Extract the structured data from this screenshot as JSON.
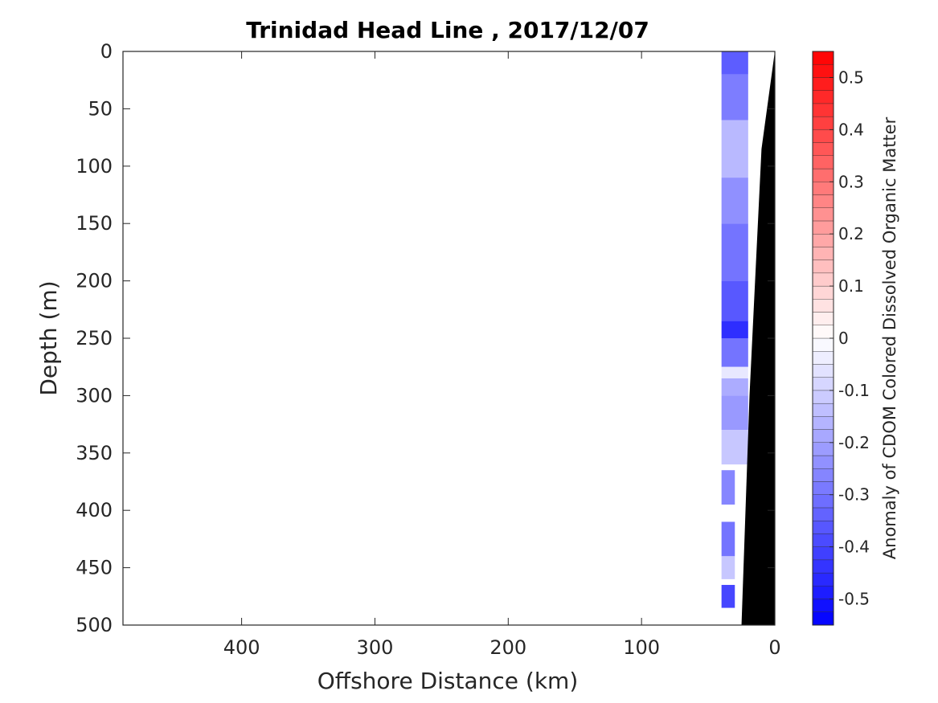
{
  "chart_data": {
    "type": "heatmap",
    "title": "Trinidad Head Line , 2017/12/07",
    "xlabel": "Offshore Distance (km)",
    "ylabel": "Depth (m)",
    "colorbar_label": "Anomaly of CDOM Colored Dissolved Organic Matter",
    "xlim": [
      489,
      0
    ],
    "x_reversed": true,
    "ylim": [
      0,
      500
    ],
    "y_reversed": true,
    "xticks": [
      400,
      300,
      200,
      100,
      0
    ],
    "yticks": [
      0,
      50,
      100,
      150,
      200,
      250,
      300,
      350,
      400,
      450,
      500
    ],
    "colorbar": {
      "range": [
        -0.55,
        0.55
      ],
      "ticks": [
        -0.5,
        -0.4,
        -0.3,
        -0.2,
        -0.1,
        0,
        0.1,
        0.2,
        0.3,
        0.4,
        0.5
      ],
      "levels": 44,
      "colormap": "blue-white-red"
    },
    "colors": {
      "negative": "#0000ff",
      "zero": "#ffffff",
      "positive": "#ff0000",
      "bathymetry": "#000000"
    },
    "bathymetry": [
      [
        0,
        0
      ],
      [
        10,
        85
      ],
      [
        19,
        300
      ],
      [
        25,
        500
      ]
    ],
    "anomaly_cells": [
      {
        "x": [
          20,
          40
        ],
        "depth": [
          0,
          20
        ],
        "value": -0.35
      },
      {
        "x": [
          20,
          40
        ],
        "depth": [
          20,
          60
        ],
        "value": -0.28
      },
      {
        "x": [
          20,
          40
        ],
        "depth": [
          60,
          110
        ],
        "value": -0.15
      },
      {
        "x": [
          20,
          40
        ],
        "depth": [
          110,
          150
        ],
        "value": -0.24
      },
      {
        "x": [
          20,
          40
        ],
        "depth": [
          150,
          200
        ],
        "value": -0.3
      },
      {
        "x": [
          20,
          40
        ],
        "depth": [
          200,
          235
        ],
        "value": -0.36
      },
      {
        "x": [
          20,
          40
        ],
        "depth": [
          235,
          250
        ],
        "value": -0.45
      },
      {
        "x": [
          20,
          40
        ],
        "depth": [
          250,
          275
        ],
        "value": -0.3
      },
      {
        "x": [
          20,
          40
        ],
        "depth": [
          275,
          285
        ],
        "value": -0.05
      },
      {
        "x": [
          20,
          40
        ],
        "depth": [
          285,
          300
        ],
        "value": -0.18
      },
      {
        "x": [
          20,
          40
        ],
        "depth": [
          300,
          330
        ],
        "value": -0.22
      },
      {
        "x": [
          20,
          40
        ],
        "depth": [
          330,
          360
        ],
        "value": -0.12
      },
      {
        "x": [
          30,
          40
        ],
        "depth": [
          365,
          395
        ],
        "value": -0.26
      },
      {
        "x": [
          30,
          40
        ],
        "depth": [
          410,
          440
        ],
        "value": -0.3
      },
      {
        "x": [
          30,
          40
        ],
        "depth": [
          440,
          460
        ],
        "value": -0.12
      },
      {
        "x": [
          30,
          40
        ],
        "depth": [
          465,
          485
        ],
        "value": -0.4
      }
    ]
  }
}
